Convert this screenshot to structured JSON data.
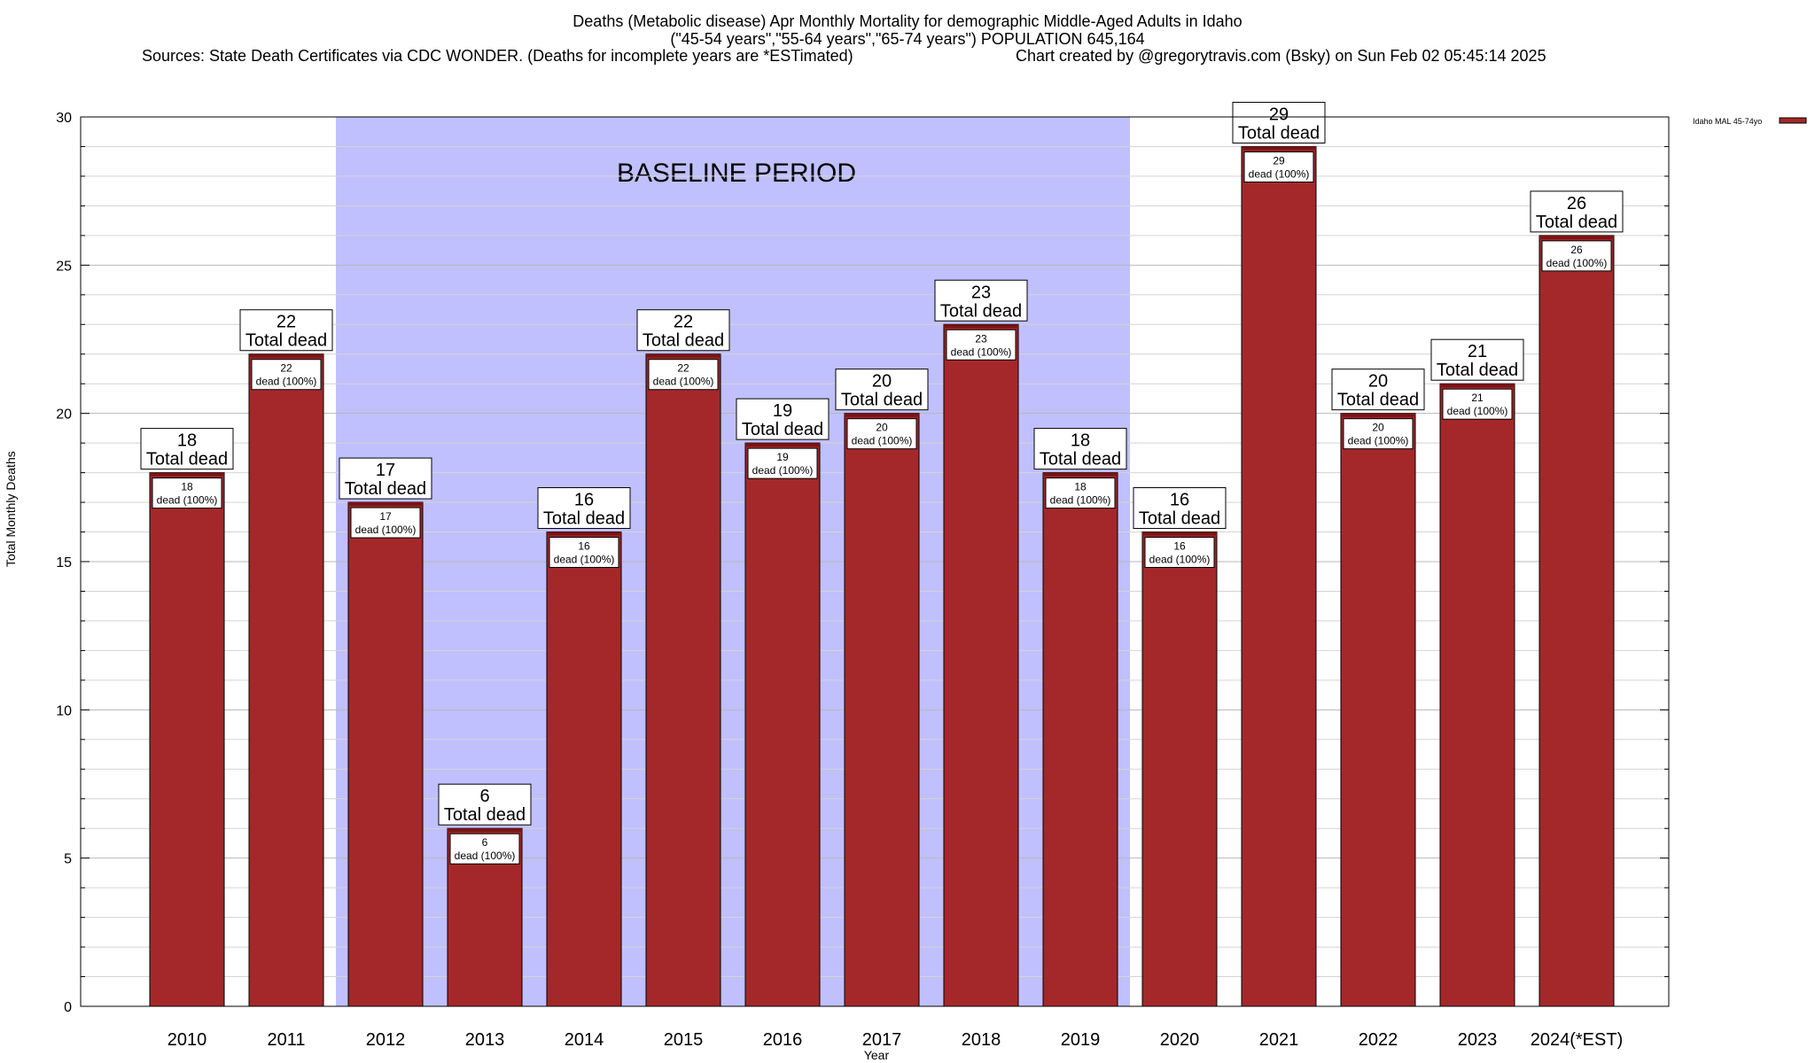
{
  "title_lines": [
    "Deaths (Metabolic disease) Apr Monthly Mortality for demographic Middle-Aged Adults in Idaho",
    "(\"45-54 years\",\"55-64 years\",\"65-74 years\") POPULATION 645,164"
  ],
  "sources": "Sources: State Death Certificates via CDC WONDER. (Deaths for incomplete years are *ESTimated)",
  "credit": "Chart created by @gregorytravis.com (Bsky) on Sun Feb 02 05:45:14 2025",
  "chart_data": {
    "type": "bar",
    "categories": [
      "2010",
      "2011",
      "2012",
      "2013",
      "2014",
      "2015",
      "2016",
      "2017",
      "2018",
      "2019",
      "2020",
      "2021",
      "2022",
      "2023",
      "2024(*EST)"
    ],
    "series": [
      {
        "name": "Idaho MAL 45-74yo",
        "values": [
          18,
          22,
          17,
          6,
          16,
          22,
          19,
          20,
          23,
          18,
          16,
          29,
          20,
          21,
          26
        ]
      }
    ],
    "xlabel": "Year",
    "ylabel": "Total Monthly Deaths",
    "ylim": [
      0,
      30
    ],
    "yticks": [
      0,
      5,
      10,
      15,
      20,
      25,
      30
    ],
    "grid": "horizontal",
    "legend_position": "top-right",
    "bar_color": "#a4282a",
    "baseline": {
      "label": "BASELINE PERIOD",
      "from": "2012",
      "to": "2019",
      "color": "#c0c0ff"
    },
    "total_label_suffix": "Total dead",
    "inner_label_suffix": "dead (100%)"
  }
}
